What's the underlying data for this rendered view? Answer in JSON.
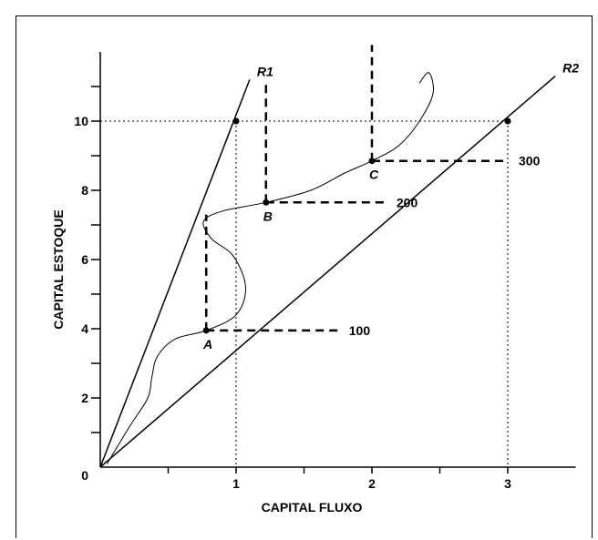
{
  "chart_data": {
    "type": "line",
    "xlabel": "CAPITAL FLUXO",
    "ylabel": "CAPITAL ESTOQUE",
    "xlim": [
      0,
      3.5
    ],
    "ylim": [
      0,
      12
    ],
    "x_ticks": [
      {
        "value": 0.5,
        "label": ""
      },
      {
        "value": 1,
        "label": "1"
      },
      {
        "value": 1.5,
        "label": ""
      },
      {
        "value": 2,
        "label": "2"
      },
      {
        "value": 2.5,
        "label": ""
      },
      {
        "value": 3,
        "label": "3"
      }
    ],
    "y_ticks": [
      {
        "value": 1,
        "label": ""
      },
      {
        "value": 2,
        "label": "2"
      },
      {
        "value": 3,
        "label": ""
      },
      {
        "value": 4,
        "label": "4"
      },
      {
        "value": 5,
        "label": ""
      },
      {
        "value": 6,
        "label": "6"
      },
      {
        "value": 7,
        "label": ""
      },
      {
        "value": 8,
        "label": "8"
      },
      {
        "value": 9,
        "label": ""
      },
      {
        "value": 10,
        "label": "10"
      },
      {
        "value": 11,
        "label": ""
      }
    ],
    "origin_label": "0",
    "rays": [
      {
        "name": "R1",
        "x": [
          0,
          1.1
        ],
        "y": [
          0,
          11.2
        ]
      },
      {
        "name": "R2",
        "x": [
          0,
          3.35
        ],
        "y": [
          0,
          11.3
        ]
      }
    ],
    "points": [
      {
        "label": "A",
        "x": 0.78,
        "y": 3.95
      },
      {
        "label": "B",
        "x": 1.22,
        "y": 7.65
      },
      {
        "label": "C",
        "x": 2.0,
        "y": 8.85
      },
      {
        "label": "",
        "x": 1.0,
        "y": 10.0
      },
      {
        "label": "",
        "x": 3.0,
        "y": 10.0
      }
    ],
    "expansion_path": {
      "x": [
        0.05,
        0.22,
        0.35,
        0.38,
        0.42,
        0.55,
        0.78,
        1.0,
        1.07,
        0.98,
        0.82,
        0.76,
        0.9,
        1.22,
        1.55,
        1.8,
        2.0,
        2.2,
        2.35,
        2.45,
        2.42,
        2.35
      ],
      "y": [
        0.1,
        1.2,
        2.0,
        2.6,
        3.2,
        3.7,
        3.95,
        4.4,
        5.2,
        6.1,
        6.6,
        7.1,
        7.4,
        7.65,
        8.0,
        8.5,
        8.85,
        9.3,
        10.0,
        10.8,
        11.4,
        11.1
      ]
    },
    "isoquants": [
      {
        "label": "100",
        "x": 0.78,
        "y": 3.95,
        "top": 7.3,
        "right": 1.75
      },
      {
        "label": "200",
        "x": 1.22,
        "y": 7.65,
        "top": 11.1,
        "right": 2.1
      },
      {
        "label": "300",
        "x": 2.0,
        "y": 8.85,
        "top": 12.2,
        "right": 3.0
      }
    ],
    "guides": {
      "y": 10.0,
      "x": [
        1.0,
        3.0
      ]
    }
  }
}
